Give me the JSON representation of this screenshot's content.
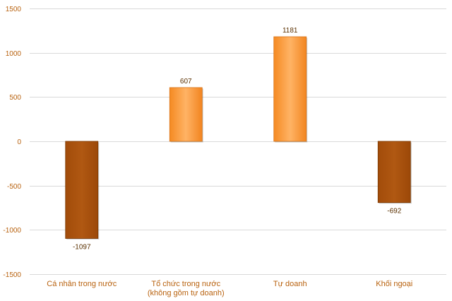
{
  "chart_data": {
    "type": "bar",
    "categories": [
      [
        "Cá nhân trong nước"
      ],
      [
        "Tổ chức trong nước",
        "(không gồm tự doanh)"
      ],
      [
        "Tự doanh"
      ],
      [
        "Khối ngoại"
      ]
    ],
    "values": [
      -1097,
      607,
      1181,
      -692
    ],
    "data_labels": [
      "-1097",
      "607",
      "1181",
      "-692"
    ],
    "ylim": [
      -1500,
      1500
    ],
    "yticks": [
      1500,
      1000,
      500,
      0,
      -500,
      -1000,
      -1500
    ],
    "ytick_labels": [
      "1500",
      "1000",
      "500",
      "0",
      "-500",
      "-1000",
      "-1500"
    ],
    "grid": true,
    "colors": {
      "positive_top": "#ffae5c",
      "positive_bottom": "#f7891e",
      "positive_edge": "#d8751a",
      "negative_top": "#ad5510",
      "negative_bottom": "#9a4a0a",
      "negative_edge": "#7a3800",
      "tick_text": "#b8620f",
      "label_text": "#5a3000"
    }
  }
}
